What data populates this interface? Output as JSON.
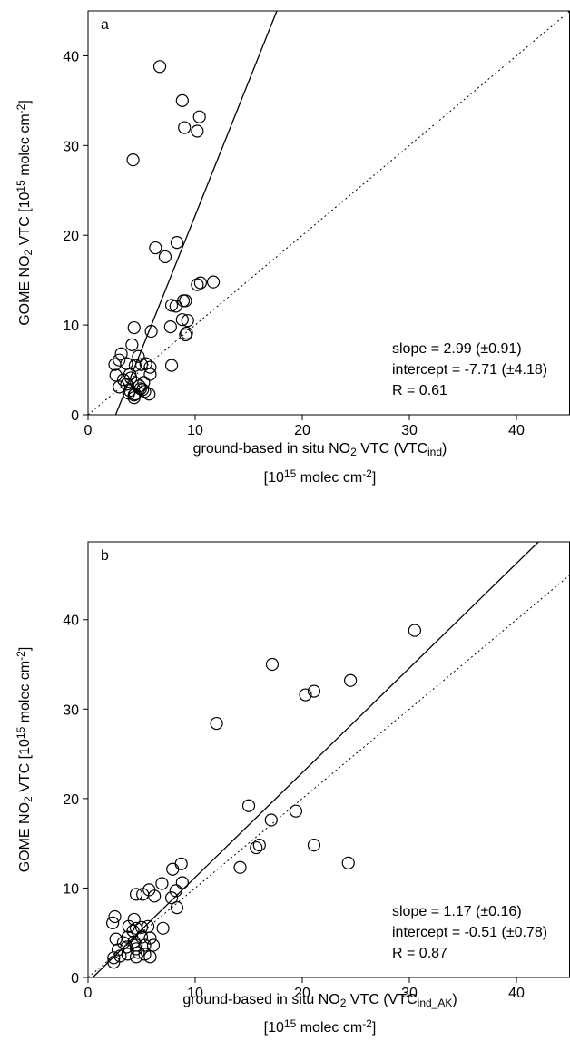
{
  "chart_data": [
    {
      "type": "scatter",
      "panel": "a",
      "ylabel": [
        {
          "text": "GOME NO"
        },
        {
          "sub": "2"
        },
        {
          "text": " VTC [10"
        },
        {
          "sup": "15"
        },
        {
          "text": " molec cm"
        },
        {
          "sup": "-2"
        },
        {
          "text": "]"
        }
      ],
      "xlabel": [
        {
          "text": "ground-based in situ NO"
        },
        {
          "sub": "2"
        },
        {
          "text": " VTC (VTC"
        },
        {
          "sub": "ind"
        },
        {
          "text": ")"
        }
      ],
      "xlabel2": [
        {
          "text": "[10"
        },
        {
          "sup": "15"
        },
        {
          "text": " molec cm"
        },
        {
          "sup": "-2"
        },
        {
          "text": "]"
        }
      ],
      "annotations": [
        "slope = 2.99 (±0.91)",
        "intercept = -7.71 (±4.18)",
        "R = 0.61"
      ],
      "fit": {
        "slope": 2.99,
        "intercept": -7.71
      },
      "diagonal": true,
      "xlim": [
        0,
        45
      ],
      "ylim": [
        0,
        45
      ],
      "xticks": [
        0,
        10,
        20,
        30,
        40
      ],
      "yticks": [
        0,
        10,
        20,
        30,
        40
      ],
      "x": [
        6.7,
        8.8,
        10.4,
        9,
        10.2,
        4.2,
        6.3,
        8.3,
        7.2,
        11.7,
        10.5,
        10.2,
        8.9,
        9.1,
        7.8,
        8.2,
        8.8,
        9.3,
        7.7,
        5.9,
        4.3,
        9.2,
        9.1,
        4.1,
        7.8,
        3.1,
        4.7,
        2.9,
        2.5,
        3.6,
        5.0,
        5.4,
        5.8,
        4.4,
        2.6,
        3.9,
        5.8,
        4.0,
        3.3,
        3.6,
        4.5,
        5.2,
        2.9,
        4.8,
        5.3,
        3.9,
        4.4,
        5.7,
        4.3,
        3.8,
        4.3,
        5.1,
        4.9
      ],
      "values": [
        38.8,
        35,
        33.2,
        32,
        31.6,
        28.4,
        18.6,
        19.2,
        17.6,
        14.8,
        14.7,
        14.5,
        12.7,
        12.7,
        12.2,
        12.1,
        10.6,
        10.5,
        9.8,
        9.3,
        9.7,
        9.1,
        8.9,
        7.8,
        5.5,
        6.8,
        6.5,
        6.1,
        5.6,
        5.7,
        5.6,
        5.7,
        5.3,
        5.5,
        4.4,
        4.5,
        4.5,
        4.1,
        3.9,
        3.4,
        3.5,
        3.6,
        3.1,
        3.2,
        2.6,
        2.7,
        2.3,
        2.3,
        2.2,
        2.4,
        1.9,
        2.8,
        2.9
      ]
    },
    {
      "type": "scatter",
      "panel": "b",
      "ylabel": [
        {
          "text": "GOME NO"
        },
        {
          "sub": "2"
        },
        {
          "text": " VTC [10"
        },
        {
          "sup": "15"
        },
        {
          "text": " molec cm"
        },
        {
          "sup": "-2"
        },
        {
          "text": "]"
        }
      ],
      "xlabel": [
        {
          "text": "ground-based in situ NO"
        },
        {
          "sub": "2"
        },
        {
          "text": " VTC (VTC"
        },
        {
          "sub": "ind_AK"
        },
        {
          "text": ")"
        }
      ],
      "xlabel2": [
        {
          "text": "[10"
        },
        {
          "sup": "15"
        },
        {
          "text": " molec cm"
        },
        {
          "sup": "-2"
        },
        {
          "text": "]"
        }
      ],
      "annotations": [
        "slope = 1.17 (±0.16)",
        "intercept = -0.51 (±0.78)",
        "R = 0.87"
      ],
      "fit": {
        "slope": 1.17,
        "intercept": -0.51
      },
      "diagonal": true,
      "xlim": [
        0,
        45
      ],
      "ylim": [
        0,
        48.7
      ],
      "xticks": [
        0,
        10,
        20,
        30,
        40
      ],
      "yticks": [
        0,
        10,
        20,
        30,
        40
      ],
      "x": [
        30.5,
        17.2,
        24.5,
        21.1,
        20.3,
        12,
        19.4,
        15,
        17.1,
        21.1,
        16,
        15.7,
        24.3,
        14.2,
        8.7,
        7.9,
        8.8,
        6.9,
        8.2,
        4.5,
        5.1,
        5.7,
        6.2,
        7.8,
        8.3,
        2.5,
        2.3,
        4.3,
        7.0,
        3.8,
        4.5,
        5.0,
        5.6,
        4.2,
        2.6,
        3.7,
        5.0,
        4.3,
        3.3,
        3.6,
        4.5,
        5.3,
        5.8,
        6.1,
        2.8,
        4.5,
        5.3,
        3.7,
        4.5,
        5.8,
        2.4,
        3.0,
        2.4,
        4.7
      ],
      "values": [
        38.8,
        35,
        33.2,
        32,
        31.6,
        28.4,
        18.6,
        19.2,
        17.6,
        14.8,
        14.8,
        14.5,
        12.8,
        12.3,
        12.7,
        12.1,
        10.6,
        10.5,
        9.7,
        9.3,
        9.3,
        9.8,
        9.1,
        8.9,
        7.8,
        6.8,
        6.1,
        6.5,
        5.5,
        5.7,
        5.5,
        5.6,
        5.7,
        5.2,
        4.3,
        4.5,
        4.5,
        4.0,
        3.9,
        3.4,
        3.6,
        3.6,
        4.4,
        3.6,
        3.1,
        3.2,
        2.6,
        2.6,
        2.3,
        2.3,
        2.2,
        2.4,
        1.7,
        2.8
      ]
    }
  ]
}
